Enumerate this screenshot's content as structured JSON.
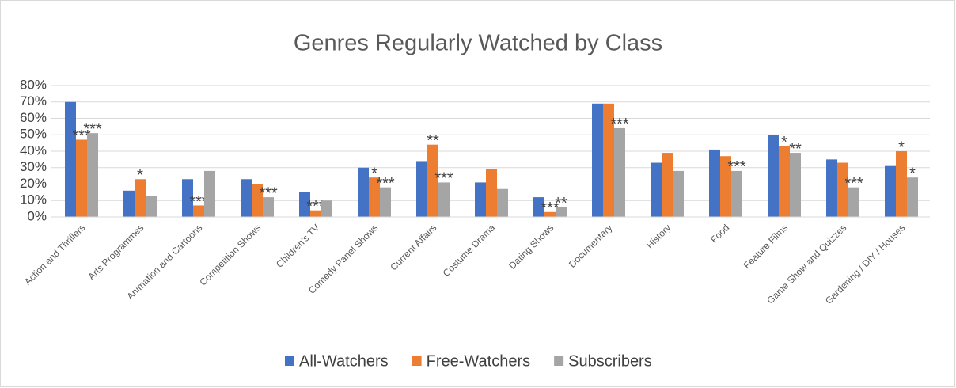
{
  "chart_data": {
    "type": "bar",
    "title": "Genres Regularly Watched by Class",
    "categories": [
      "Action and Thrillers",
      "Arts Programmes",
      "Animation and Cartoons",
      "Competition Shows",
      "Children's TV",
      "Comedy Panel Shows",
      "Current Affairs",
      "Costume Drama",
      "Dating Shows",
      "Documentary",
      "History",
      "Food",
      "Feature Films",
      "Game Show and Quizzes",
      "Gardening / DIY / Houses"
    ],
    "series": [
      {
        "name": "All-Watchers",
        "color": "#4472c4",
        "values": [
          70,
          16,
          23,
          23,
          15,
          30,
          34,
          21,
          12,
          69,
          33,
          41,
          50,
          35,
          31
        ],
        "significance": [
          null,
          null,
          null,
          null,
          null,
          null,
          null,
          null,
          null,
          null,
          null,
          null,
          null,
          null,
          null
        ]
      },
      {
        "name": "Free-Watchers",
        "color": "#ed7d31",
        "values": [
          47,
          23,
          7,
          20,
          4,
          24,
          44,
          29,
          3,
          69,
          39,
          37,
          43,
          33,
          40
        ],
        "significance": [
          "***",
          "*",
          "***",
          null,
          "***",
          "*",
          "**",
          null,
          "***",
          null,
          null,
          null,
          "*",
          null,
          "*"
        ]
      },
      {
        "name": "Subscribers",
        "color": "#a5a5a5",
        "values": [
          51,
          13,
          28,
          12,
          10,
          18,
          21,
          17,
          6,
          54,
          28,
          28,
          39,
          18,
          24
        ],
        "significance": [
          "***",
          null,
          null,
          "***",
          null,
          "***",
          "***",
          null,
          "**",
          "***",
          null,
          "***",
          "**",
          "***",
          "*"
        ]
      }
    ],
    "ylim": [
      0,
      80
    ],
    "yticks": [
      {
        "value": 0,
        "label": "0%"
      },
      {
        "value": 10,
        "label": "10%"
      },
      {
        "value": 20,
        "label": "20%"
      },
      {
        "value": 30,
        "label": "30%"
      },
      {
        "value": 40,
        "label": "40%"
      },
      {
        "value": 50,
        "label": "50%"
      },
      {
        "value": 60,
        "label": "60%"
      },
      {
        "value": 70,
        "label": "70%"
      },
      {
        "value": 80,
        "label": "80%"
      }
    ],
    "grid": true,
    "legend": "bottom"
  }
}
